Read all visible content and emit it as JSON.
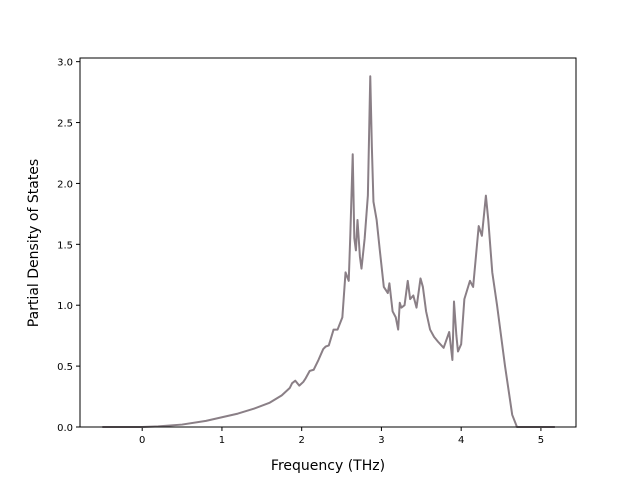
{
  "chart_data": {
    "type": "line",
    "xlabel": "Frequency (THz)",
    "ylabel": "Partial Density of States",
    "color": "#8a7f86",
    "x": [
      -0.5,
      0,
      0.2,
      0.5,
      0.8,
      1.0,
      1.2,
      1.4,
      1.6,
      1.75,
      1.85,
      1.88,
      1.92,
      1.97,
      2.02,
      2.05,
      2.1,
      2.15,
      2.21,
      2.27,
      2.3,
      2.34,
      2.4,
      2.45,
      2.51,
      2.55,
      2.59,
      2.61,
      2.64,
      2.66,
      2.68,
      2.7,
      2.73,
      2.75,
      2.79,
      2.83,
      2.86,
      2.88,
      2.9,
      2.94,
      2.98,
      3.03,
      3.08,
      3.1,
      3.14,
      3.18,
      3.21,
      3.23,
      3.25,
      3.29,
      3.33,
      3.36,
      3.4,
      3.44,
      3.49,
      3.52,
      3.56,
      3.61,
      3.66,
      3.71,
      3.78,
      3.85,
      3.89,
      3.91,
      3.94,
      3.96,
      4.0,
      4.04,
      4.11,
      4.15,
      4.22,
      4.26,
      4.31,
      4.34,
      4.39,
      4.45,
      4.55,
      4.64,
      4.7,
      4.8,
      5.175
    ],
    "values": [
      0,
      0,
      0.005,
      0.02,
      0.05,
      0.08,
      0.11,
      0.15,
      0.2,
      0.26,
      0.32,
      0.36,
      0.38,
      0.34,
      0.37,
      0.4,
      0.46,
      0.47,
      0.55,
      0.64,
      0.66,
      0.67,
      0.8,
      0.8,
      0.9,
      1.27,
      1.2,
      1.58,
      2.24,
      1.55,
      1.45,
      1.7,
      1.4,
      1.3,
      1.55,
      1.9,
      2.88,
      2.3,
      1.85,
      1.7,
      1.45,
      1.15,
      1.1,
      1.18,
      0.95,
      0.9,
      0.8,
      1.02,
      0.98,
      1.0,
      1.2,
      1.05,
      1.08,
      0.98,
      1.22,
      1.15,
      0.95,
      0.8,
      0.74,
      0.7,
      0.65,
      0.78,
      0.55,
      1.03,
      0.75,
      0.62,
      0.68,
      1.05,
      1.2,
      1.15,
      1.65,
      1.57,
      1.9,
      1.7,
      1.27,
      1.0,
      0.5,
      0.1,
      0,
      0,
      0
    ],
    "xlim": [
      -0.78,
      5.44
    ],
    "ylim": [
      0,
      3.03
    ],
    "xticks": [
      0,
      1,
      2,
      3,
      4,
      5
    ],
    "yticks": [
      {
        "value": 0,
        "label": "0.0"
      },
      0.5,
      {
        "value": 1,
        "label": "1.0"
      },
      1.5,
      {
        "value": 2,
        "label": "2.0"
      },
      2.5,
      {
        "value": 3,
        "label": "3.0"
      }
    ]
  }
}
